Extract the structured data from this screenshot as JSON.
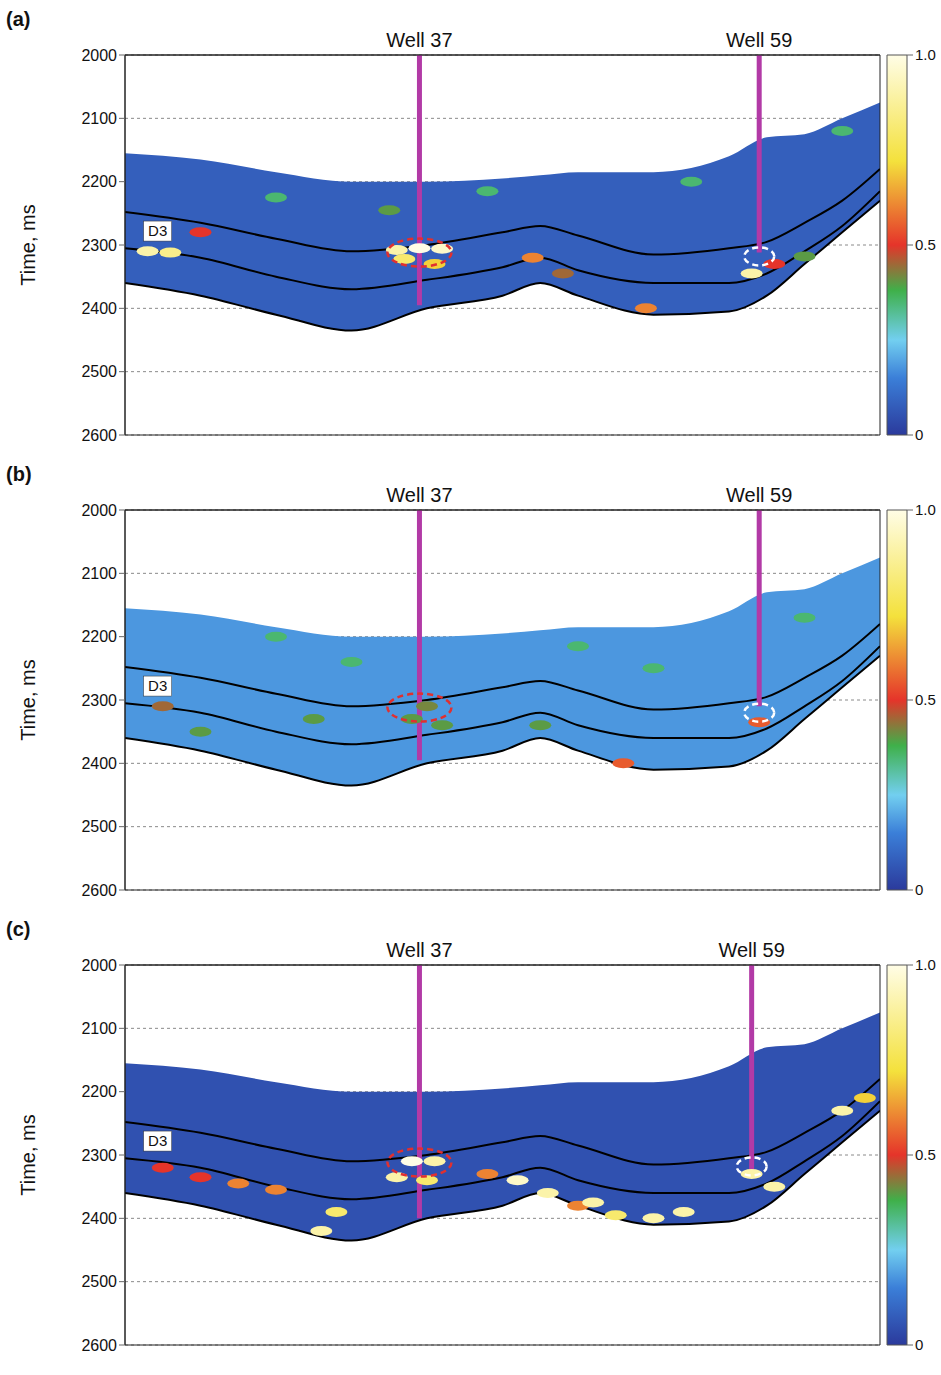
{
  "chart_data": [
    {
      "type": "section",
      "panel": "(a)",
      "ylabel": "Time, ms",
      "xlim": [
        0,
        100
      ],
      "ylim": [
        2000,
        2600
      ],
      "yticks": [
        2000,
        2100,
        2200,
        2300,
        2400,
        2500,
        2600
      ],
      "grid": true,
      "tick_labels": "y",
      "background": 0.08,
      "section": {
        "x": [
          0,
          10,
          20,
          30,
          40,
          50,
          55,
          60,
          70,
          80,
          85,
          90,
          95,
          100
        ],
        "top": [
          2155,
          2165,
          2185,
          2200,
          2200,
          2195,
          2190,
          2185,
          2185,
          2160,
          2130,
          2125,
          2100,
          2075
        ],
        "bottom": [
          2360,
          2380,
          2410,
          2435,
          2400,
          2380,
          2360,
          2380,
          2410,
          2405,
          2380,
          2330,
          2280,
          2230
        ]
      },
      "horizon": {
        "name": "D3",
        "color": "#000000",
        "label_x": 3,
        "label_y": 2278,
        "top": [
          2248,
          2265,
          2290,
          2310,
          2300,
          2280,
          2270,
          2285,
          2315,
          2305,
          2295,
          2265,
          2230,
          2180
        ],
        "base": [
          2305,
          2320,
          2350,
          2370,
          2355,
          2335,
          2320,
          2340,
          2360,
          2360,
          2345,
          2310,
          2270,
          2215
        ]
      },
      "wells": [
        {
          "name": "Well 37",
          "x": 39,
          "bottom": 2395,
          "color": "#b23aa6"
        },
        {
          "name": "Well 59",
          "x": 84,
          "bottom": 2312,
          "color": "#b23aa6"
        }
      ],
      "spots": [
        [
          3,
          2310,
          0.9
        ],
        [
          6,
          2312,
          0.85
        ],
        [
          10,
          2280,
          0.5
        ],
        [
          20,
          2225,
          0.35
        ],
        [
          35,
          2245,
          0.4
        ],
        [
          36,
          2308,
          0.9
        ],
        [
          39,
          2305,
          1.0
        ],
        [
          42,
          2306,
          0.95
        ],
        [
          37,
          2322,
          0.8
        ],
        [
          41,
          2330,
          0.7
        ],
        [
          48,
          2215,
          0.35
        ],
        [
          54,
          2320,
          0.6
        ],
        [
          58,
          2345,
          0.45
        ],
        [
          69,
          2400,
          0.6
        ],
        [
          75,
          2200,
          0.35
        ],
        [
          83,
          2345,
          0.9
        ],
        [
          86,
          2330,
          0.5
        ],
        [
          90,
          2318,
          0.4
        ],
        [
          95,
          2120,
          0.35
        ]
      ],
      "highlights": [
        {
          "x": 39,
          "y": 2312,
          "color": "#e03030",
          "line_style": "dashed"
        },
        {
          "x": 84,
          "y": 2318,
          "color": "#ffffff",
          "line_style": "dashed"
        }
      ],
      "colorbar": {
        "range": [
          0,
          1
        ],
        "ticks": [
          0,
          0.5,
          {
            "value": 1,
            "label": "1.0"
          }
        ]
      }
    },
    {
      "type": "section",
      "panel": "(b)",
      "ylabel": "Time, ms",
      "xlim": [
        0,
        100
      ],
      "ylim": [
        2000,
        2600
      ],
      "yticks": [
        2000,
        2100,
        2200,
        2300,
        2400,
        2500,
        2600
      ],
      "grid": true,
      "tick_labels": "y",
      "background": 0.18,
      "section": {
        "x": [
          0,
          10,
          20,
          30,
          40,
          50,
          55,
          60,
          70,
          80,
          85,
          90,
          95,
          100
        ],
        "top": [
          2155,
          2165,
          2185,
          2200,
          2200,
          2195,
          2190,
          2185,
          2185,
          2160,
          2130,
          2125,
          2100,
          2075
        ],
        "bottom": [
          2360,
          2380,
          2410,
          2435,
          2400,
          2380,
          2360,
          2380,
          2410,
          2405,
          2380,
          2330,
          2280,
          2230
        ]
      },
      "horizon": {
        "name": "D3",
        "color": "#000000",
        "label_x": 3,
        "label_y": 2278,
        "top": [
          2248,
          2265,
          2290,
          2310,
          2300,
          2280,
          2270,
          2285,
          2315,
          2305,
          2295,
          2265,
          2230,
          2180
        ],
        "base": [
          2305,
          2320,
          2350,
          2370,
          2355,
          2335,
          2320,
          2340,
          2360,
          2360,
          2345,
          2310,
          2270,
          2215
        ]
      },
      "wells": [
        {
          "name": "Well 37",
          "x": 39,
          "bottom": 2395,
          "color": "#b23aa6"
        },
        {
          "name": "Well 59",
          "x": 84,
          "bottom": 2310,
          "color": "#b23aa6"
        }
      ],
      "spots": [
        [
          5,
          2310,
          0.45
        ],
        [
          10,
          2350,
          0.4
        ],
        [
          20,
          2200,
          0.35
        ],
        [
          25,
          2330,
          0.4
        ],
        [
          38,
          2330,
          0.4
        ],
        [
          40,
          2310,
          0.42
        ],
        [
          42,
          2340,
          0.4
        ],
        [
          55,
          2340,
          0.4
        ],
        [
          66,
          2400,
          0.55
        ],
        [
          70,
          2250,
          0.35
        ],
        [
          84,
          2335,
          0.55
        ],
        [
          90,
          2170,
          0.35
        ],
        [
          30,
          2240,
          0.35
        ],
        [
          60,
          2215,
          0.35
        ]
      ],
      "highlights": [
        {
          "x": 39,
          "y": 2312,
          "color": "#e03030",
          "line_style": "dashed"
        },
        {
          "x": 84,
          "y": 2320,
          "color": "#ffffff",
          "line_style": "dashed"
        }
      ],
      "colorbar": {
        "range": [
          0,
          1
        ],
        "ticks": [
          0,
          0.5,
          {
            "value": 1,
            "label": "1.0"
          }
        ]
      }
    },
    {
      "type": "section",
      "panel": "(c)",
      "ylabel": "Time, ms",
      "xlim": [
        0,
        100
      ],
      "ylim": [
        2000,
        2600
      ],
      "yticks": [
        2000,
        2100,
        2200,
        2300,
        2400,
        2500,
        2600
      ],
      "grid": true,
      "tick_labels": "y",
      "background": 0.05,
      "section": {
        "x": [
          0,
          10,
          20,
          30,
          40,
          50,
          55,
          60,
          70,
          80,
          85,
          90,
          95,
          100
        ],
        "top": [
          2155,
          2165,
          2185,
          2200,
          2200,
          2195,
          2190,
          2185,
          2185,
          2160,
          2130,
          2125,
          2100,
          2075
        ],
        "bottom": [
          2360,
          2380,
          2410,
          2435,
          2400,
          2380,
          2360,
          2380,
          2410,
          2405,
          2380,
          2330,
          2280,
          2230
        ]
      },
      "horizon": {
        "name": "D3",
        "color": "#000000",
        "label_x": 3,
        "label_y": 2278,
        "top": [
          2248,
          2265,
          2290,
          2310,
          2300,
          2280,
          2270,
          2285,
          2315,
          2305,
          2295,
          2265,
          2230,
          2180
        ],
        "base": [
          2305,
          2320,
          2350,
          2370,
          2355,
          2335,
          2320,
          2340,
          2360,
          2360,
          2345,
          2310,
          2270,
          2215
        ]
      },
      "wells": [
        {
          "name": "Well 37",
          "x": 39,
          "bottom": 2400,
          "color": "#b23aa6"
        },
        {
          "name": "Well 59",
          "x": 83,
          "bottom": 2330,
          "color": "#b23aa6"
        }
      ],
      "spots": [
        [
          5,
          2320,
          0.5
        ],
        [
          10,
          2335,
          0.5
        ],
        [
          15,
          2345,
          0.6
        ],
        [
          20,
          2355,
          0.6
        ],
        [
          26,
          2420,
          0.9
        ],
        [
          28,
          2390,
          0.8
        ],
        [
          36,
          2335,
          0.9
        ],
        [
          38,
          2310,
          1.0
        ],
        [
          40,
          2340,
          0.8
        ],
        [
          41,
          2310,
          0.9
        ],
        [
          48,
          2330,
          0.6
        ],
        [
          52,
          2340,
          0.95
        ],
        [
          56,
          2360,
          0.9
        ],
        [
          60,
          2380,
          0.6
        ],
        [
          62,
          2375,
          0.9
        ],
        [
          65,
          2395,
          0.8
        ],
        [
          70,
          2400,
          0.9
        ],
        [
          74,
          2390,
          0.9
        ],
        [
          83,
          2330,
          0.9
        ],
        [
          86,
          2350,
          0.9
        ],
        [
          95,
          2230,
          0.9
        ],
        [
          98,
          2210,
          0.7
        ]
      ],
      "highlights": [
        {
          "x": 39,
          "y": 2312,
          "color": "#e03030",
          "line_style": "dashed"
        },
        {
          "x": 83,
          "y": 2318,
          "color": "#ffffff",
          "line_style": "dashed"
        }
      ],
      "colorbar": {
        "range": [
          0,
          1
        ],
        "ticks": [
          0,
          0.5,
          {
            "value": 1,
            "label": "1.0"
          }
        ]
      }
    }
  ]
}
